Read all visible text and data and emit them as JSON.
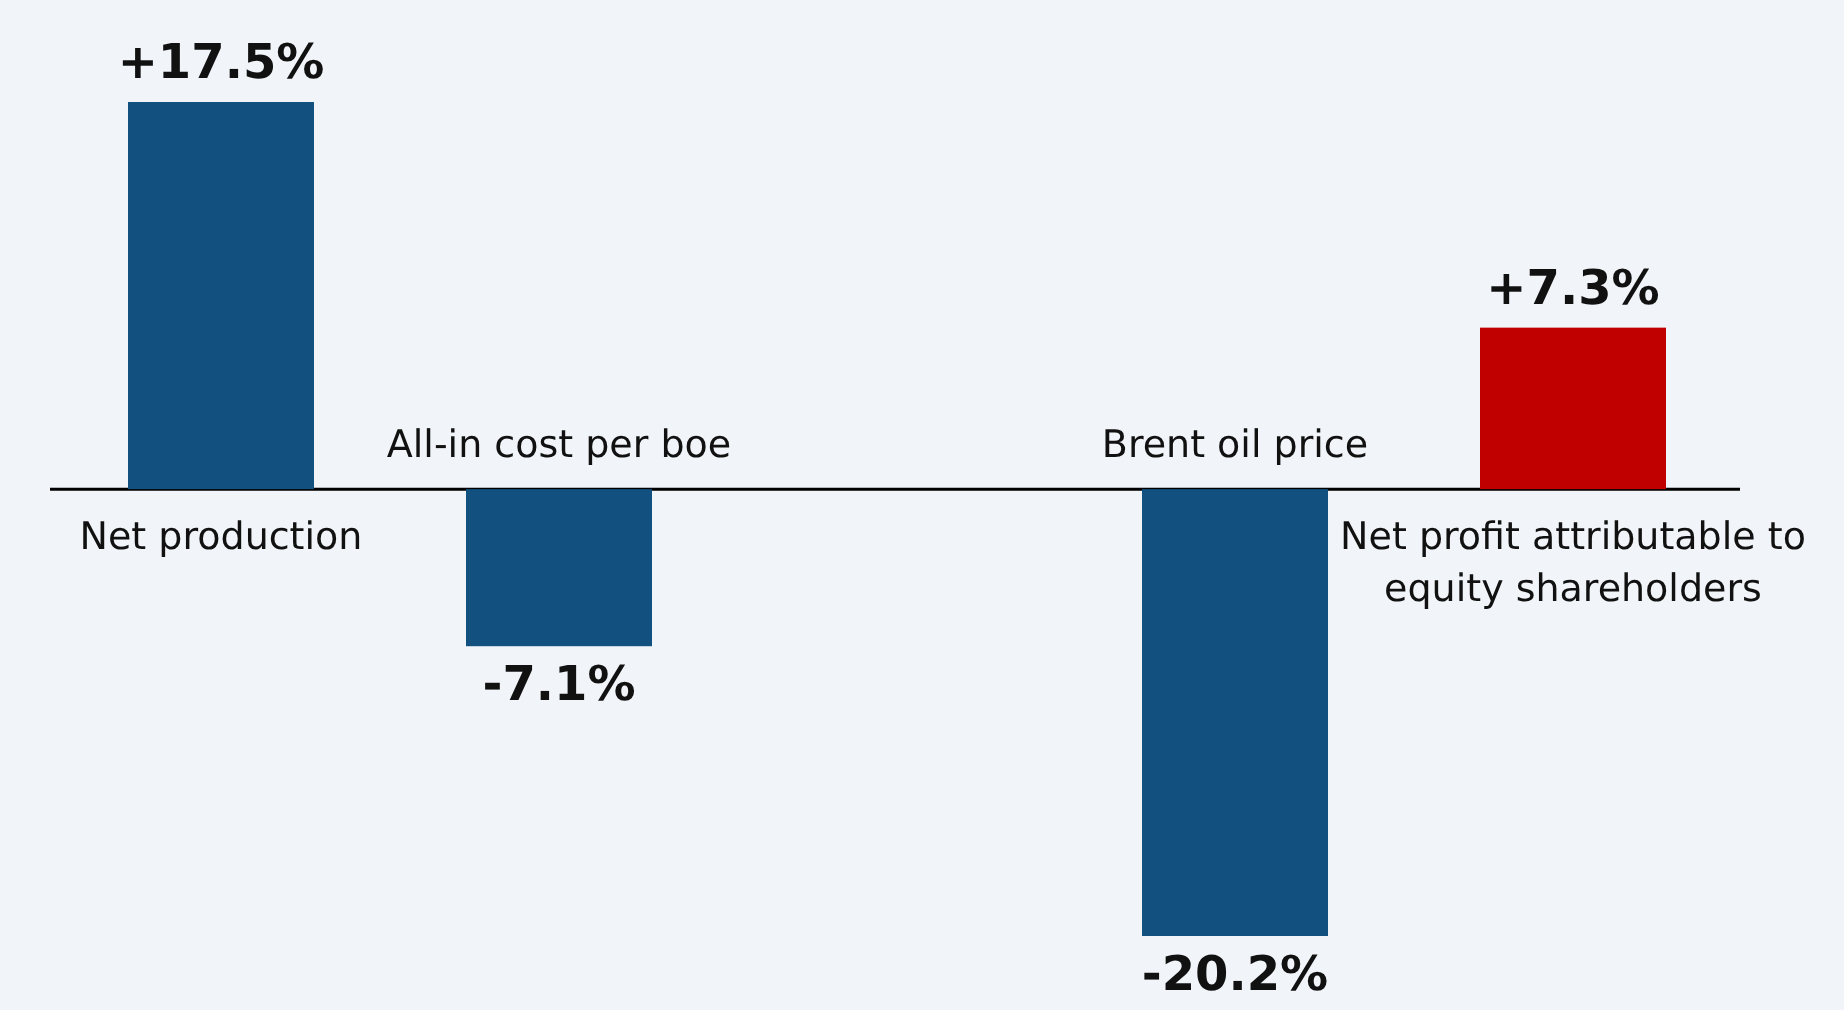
{
  "chart_data": {
    "type": "bar",
    "categories": [
      "Net production",
      "All-in cost per boe",
      null,
      "Brent oil price",
      "Net profit attributable to equity shareholders"
    ],
    "values": [
      17.5,
      -7.1,
      null,
      -20.2,
      7.3
    ],
    "colors": [
      "#11507f",
      "#11507f",
      "#11507f",
      "#11507f",
      "#c00000"
    ],
    "value_labels": [
      "+17.5%",
      "-7.1%",
      null,
      "-20.2%",
      "+7.3%"
    ]
  }
}
